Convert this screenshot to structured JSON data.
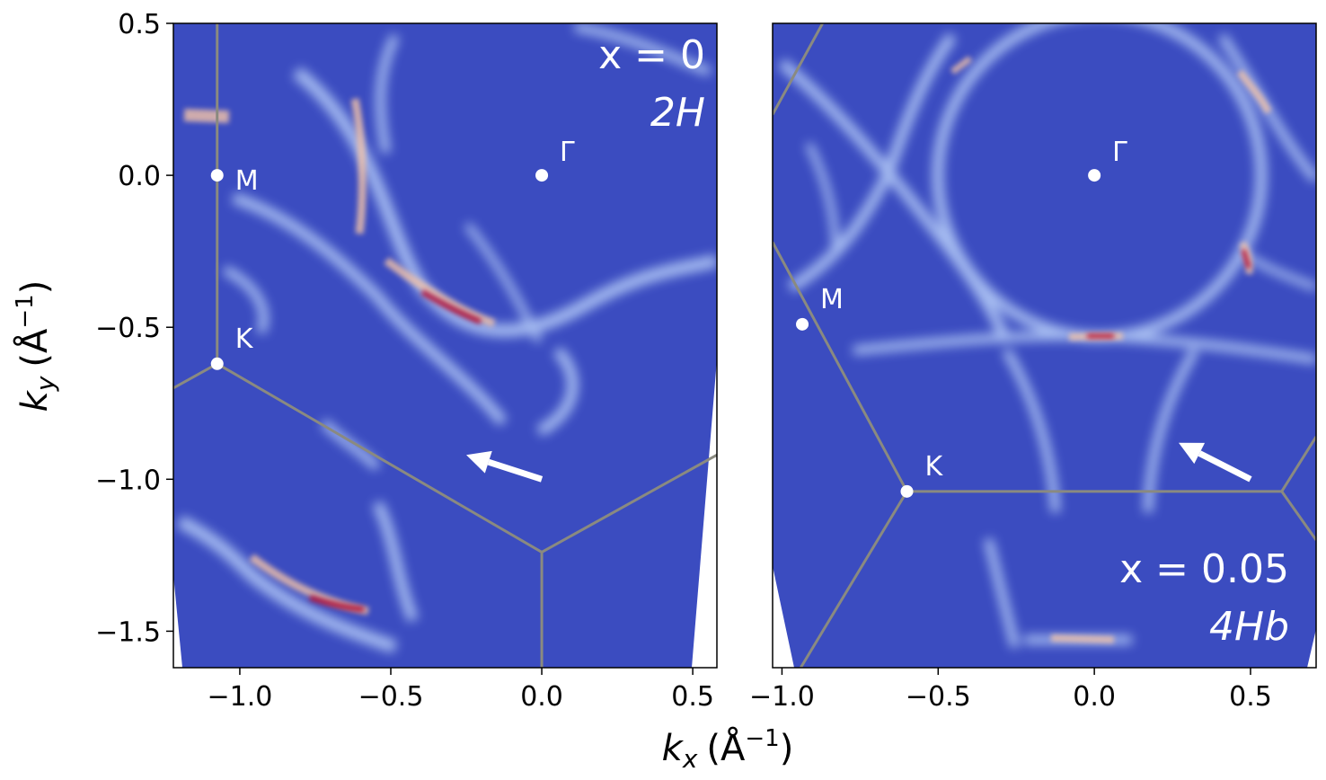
{
  "chart_data": [
    {
      "type": "heatmap",
      "xlabel_main": "k",
      "xlabel_sub": "x",
      "xlabel_unit": "(Å",
      "xlabel_exp": "−1",
      "xlabel_close": ")",
      "ylabel_main": "k",
      "ylabel_sub": "y",
      "ylabel_unit": "(Å",
      "ylabel_exp": "−1",
      "ylabel_close": ")",
      "xlim": [
        -1.22,
        0.58
      ],
      "ylim": [
        -1.62,
        0.5
      ],
      "xticks": [
        -1.0,
        -0.5,
        0.0,
        0.5
      ],
      "xtick_labels": [
        "−1.0",
        "−0.5",
        "0.0",
        "0.5"
      ],
      "yticks": [
        0.5,
        0.0,
        -0.5,
        -1.0,
        -1.5
      ],
      "ytick_labels": [
        "0.5",
        "0.0",
        "−0.5",
        "−1.0",
        "−1.5"
      ],
      "annotation_line1": "x = 0",
      "annotation_line2": "2H",
      "points": [
        {
          "label": "Γ",
          "x": 0.0,
          "y": 0.0
        },
        {
          "label": "M",
          "x": -1.075,
          "y": 0.0
        },
        {
          "label": "K",
          "x": -1.075,
          "y": -0.62
        }
      ],
      "brillouin_zone": [
        {
          "x": [
            -1.075,
            -1.075
          ],
          "y": [
            0.5,
            -0.62
          ]
        },
        {
          "x": [
            -1.075,
            -1.22
          ],
          "y": [
            -0.62,
            -0.7
          ]
        },
        {
          "x": [
            -1.075,
            0.0
          ],
          "y": [
            -0.62,
            -1.24
          ]
        },
        {
          "x": [
            0.0,
            0.0
          ],
          "y": [
            -1.24,
            -1.62
          ]
        },
        {
          "x": [
            0.0,
            0.58
          ],
          "y": [
            -1.24,
            -0.92
          ]
        }
      ],
      "arrow": {
        "x_from": -0.0,
        "y_from": -1.0,
        "x_to": -0.25,
        "y_to": -0.92
      }
    },
    {
      "type": "heatmap",
      "xlim": [
        -1.03,
        0.71
      ],
      "ylim": [
        -1.62,
        0.5
      ],
      "xticks": [
        -1.0,
        -0.5,
        0.0,
        0.5
      ],
      "xtick_labels": [
        "−1.0",
        "−0.5",
        "0.0",
        "0.5"
      ],
      "annotation_line1": "x = 0.05",
      "annotation_line2": "4Hb",
      "points": [
        {
          "label": "Γ",
          "x": 0.0,
          "y": 0.0
        },
        {
          "label": "M",
          "x": -0.935,
          "y": -0.49
        },
        {
          "label": "K",
          "x": -0.6,
          "y": -1.04
        }
      ],
      "brillouin_zone": [
        {
          "x": [
            -1.03,
            -0.6
          ],
          "y": [
            -0.22,
            -1.04
          ]
        },
        {
          "x": [
            -0.6,
            0.6
          ],
          "y": [
            -1.04,
            -1.04
          ]
        },
        {
          "x": [
            -0.6,
            -0.94
          ],
          "y": [
            -1.04,
            -1.62
          ]
        },
        {
          "x": [
            0.6,
            0.71
          ],
          "y": [
            -1.04,
            -0.86
          ]
        },
        {
          "x": [
            0.6,
            0.71
          ],
          "y": [
            -1.04,
            -1.2
          ]
        },
        {
          "x": [
            -1.03,
            -0.87
          ],
          "y": [
            0.2,
            0.5
          ]
        }
      ],
      "arrow": {
        "x_from": 0.5,
        "y_from": -1.0,
        "x_to": 0.27,
        "y_to": -0.88
      }
    }
  ],
  "colors": {
    "background_map": "#3b4cc0",
    "high_intensity": "#b40426",
    "mid_intensity": "#f4c4a8",
    "low_intensity": "#b9d0f9",
    "zone_line": "#8a8a80"
  }
}
